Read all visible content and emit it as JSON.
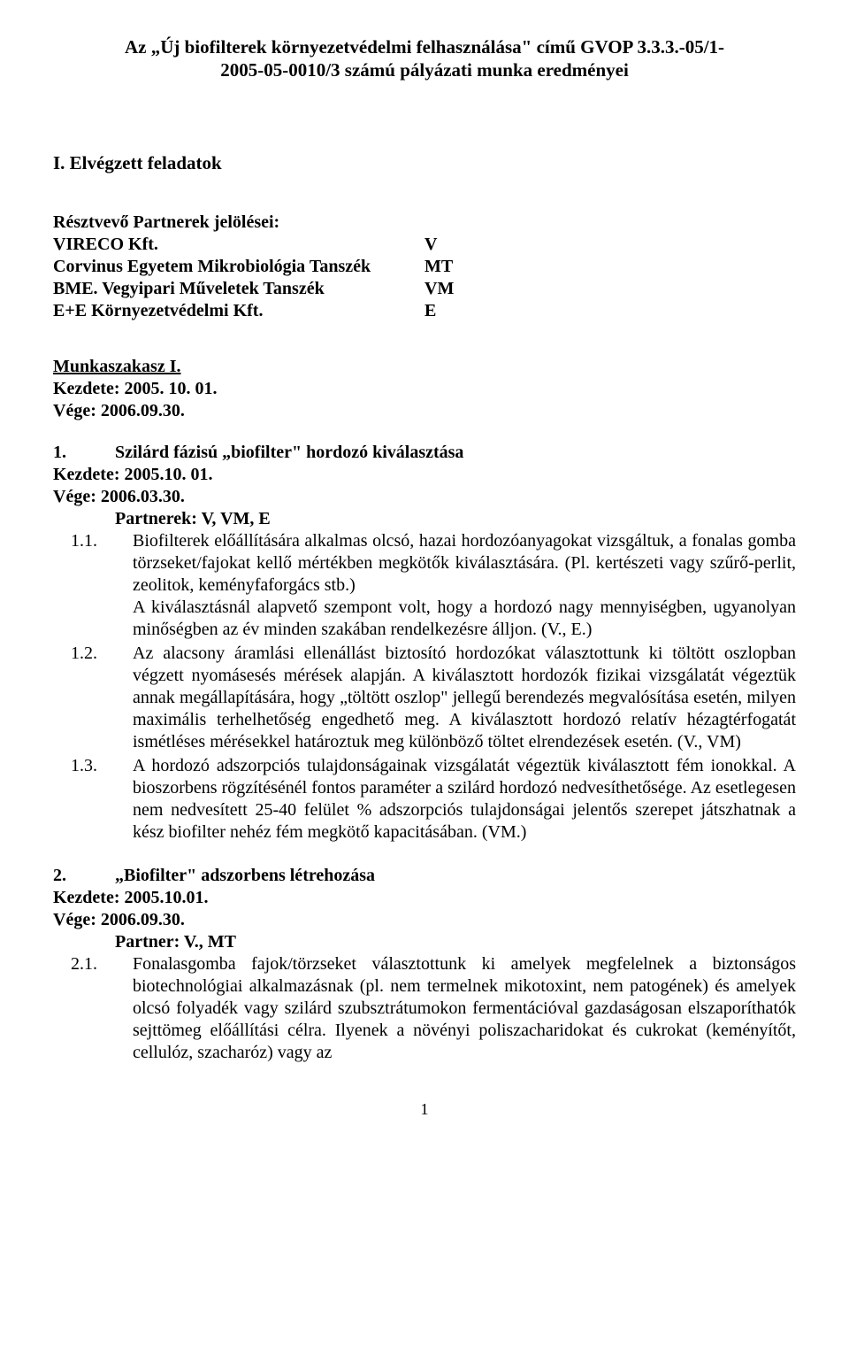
{
  "title_line1": "Az „Új biofilterek környezetvédelmi felhasználása\" című GVOP 3.3.3.-05/1-",
  "title_line2": "2005-05-0010/3 számú pályázati munka eredményei",
  "section1_heading": "I. Elvégzett feladatok",
  "partners_intro": "Résztvevő Partnerek jelölései:",
  "partners": [
    {
      "name": "VIRECO Kft.",
      "code": "V"
    },
    {
      "name": "Corvinus Egyetem Mikrobiológia Tanszék",
      "code": "MT"
    },
    {
      "name": "BME. Vegyipari Műveletek Tanszék",
      "code": "VM"
    },
    {
      "name": "E+E Környezetvédelmi Kft.",
      "code": "E"
    }
  ],
  "phase_heading": "Munkaszakasz I.",
  "phase_start": "Kezdete: 2005. 10. 01.",
  "phase_end": "Vége: 2006.09.30.",
  "task1": {
    "num": "1.",
    "title": "Szilárd fázisú „biofilter\" hordozó kiválasztása",
    "start": "Kezdete: 2005.10. 01.",
    "end": "Vége: 2006.03.30.",
    "partners": "Partnerek: V, VM, E",
    "items": [
      {
        "num": "1.1.",
        "text": "Biofilterek előállítására alkalmas olcsó, hazai hordozóanyagokat vizsgáltuk, a fonalas gomba törzseket/fajokat kellő mértékben megkötők kiválasztására. (Pl. kertészeti vagy szűrő-perlit, zeolitok, keményfaforgács stb.)\nA kiválasztásnál alapvető szempont volt, hogy a hordozó nagy mennyiségben, ugyanolyan minőségben az év minden szakában rendelkezésre álljon. (V., E.)"
      },
      {
        "num": "1.2.",
        "text": "Az alacsony áramlási ellenállást biztosító hordozókat választottunk ki töltött oszlopban végzett nyomásesés mérések alapján. A kiválasztott hordozók fizikai vizsgálatát végeztük annak megállapítására, hogy „töltött oszlop\" jellegű berendezés megvalósítása esetén, milyen maximális terhelhetőség engedhető meg. A kiválasztott hordozó relatív hézagtérfogatát ismétléses mérésekkel határoztuk meg  különböző töltet elrendezések esetén. (V., VM)"
      },
      {
        "num": "1.3.",
        "text": "A hordozó adszorpciós tulajdonságainak vizsgálatát végeztük kiválasztott fém ionokkal. A bioszorbens rögzítésénél fontos paraméter a szilárd hordozó nedvesíthetősége. Az esetlegesen nem nedvesített 25-40 felület % adszorpciós tulajdonságai jelentős szerepet játszhatnak a kész biofilter nehéz fém megkötő kapacitásában. (VM.)"
      }
    ]
  },
  "task2": {
    "num": "2.",
    "title": "„Biofilter\" adszorbens létrehozása",
    "start": "Kezdete: 2005.10.01.",
    "end": "Vége: 2006.09.30.",
    "partners": "Partner: V., MT",
    "items": [
      {
        "num": "2.1.",
        "text": "Fonalasgomba fajok/törzseket választottunk ki amelyek megfelelnek a biztonságos biotechnológiai alkalmazásnak (pl. nem termelnek mikotoxint, nem patogének) és amelyek olcsó folyadék vagy szilárd szubsztrátumokon fermentációval gazdaságosan elszaporíthatók sejttömeg előállítási célra. Ilyenek a növényi poliszacharidokat és cukrokat (keményítőt, cellulóz, szacharóz) vagy az"
      }
    ]
  },
  "page_number": "1"
}
